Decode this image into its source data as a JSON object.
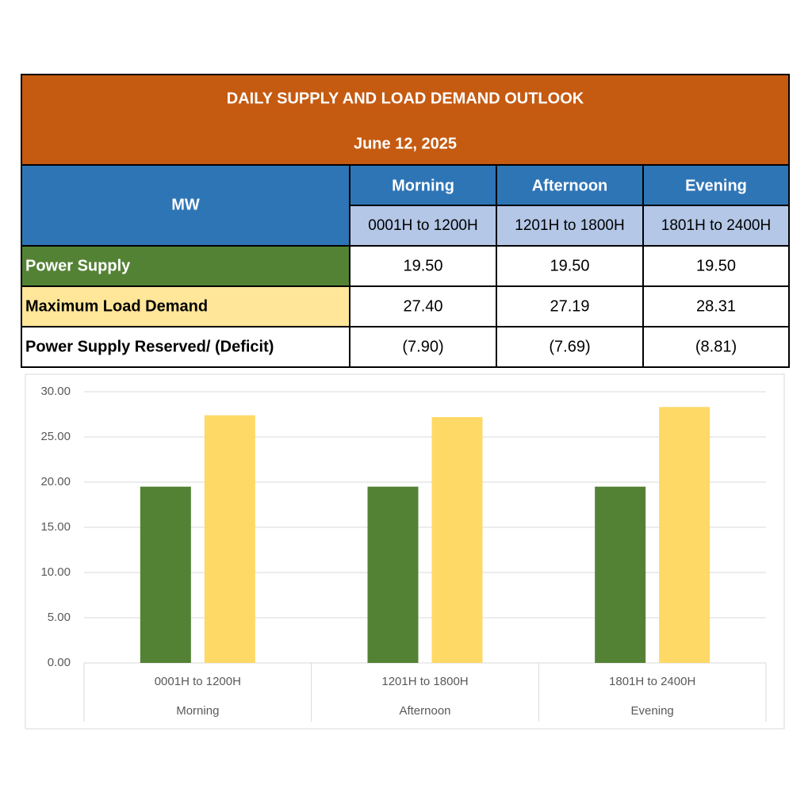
{
  "table": {
    "title": "DAILY SUPPLY AND LOAD DEMAND OUTLOOK",
    "date": "June 12, 2025",
    "corner": "MW",
    "columns": [
      {
        "period": "Morning",
        "hours": "0001H to 1200H"
      },
      {
        "period": "Afternoon",
        "hours": "1201H to 1800H"
      },
      {
        "period": "Evening",
        "hours": "1801H to 2400H"
      }
    ],
    "rows": [
      {
        "label": "Power Supply",
        "cells": [
          "19.50",
          "19.50",
          "19.50"
        ]
      },
      {
        "label": "Maximum Load Demand",
        "cells": [
          "27.40",
          "27.19",
          "28.31"
        ]
      },
      {
        "label": "Power Supply Reserved/ (Deficit)",
        "cells": [
          "(7.90)",
          "(7.69)",
          "(8.81)"
        ]
      }
    ]
  },
  "chart_data": {
    "type": "bar",
    "categories": [
      "0001H to 1200H",
      "1201H to 1800H",
      "1801H to 2400H"
    ],
    "groups": [
      "Morning",
      "Afternoon",
      "Evening"
    ],
    "series": [
      {
        "color": "#548235",
        "values": [
          19.5,
          19.5,
          19.5
        ]
      },
      {
        "color": "#ffd966",
        "values": [
          27.4,
          27.19,
          28.31
        ]
      }
    ],
    "ylim": [
      0,
      30
    ],
    "yticks": [
      {
        "value": 0,
        "label": "0.00"
      },
      {
        "value": 5,
        "label": "5.00"
      },
      {
        "value": 10,
        "label": "10.00"
      },
      {
        "value": 15,
        "label": "15.00"
      },
      {
        "value": 20,
        "label": "20.00"
      },
      {
        "value": 25,
        "label": "25.00"
      },
      {
        "value": 30,
        "label": "30.00"
      }
    ],
    "grid": true
  }
}
